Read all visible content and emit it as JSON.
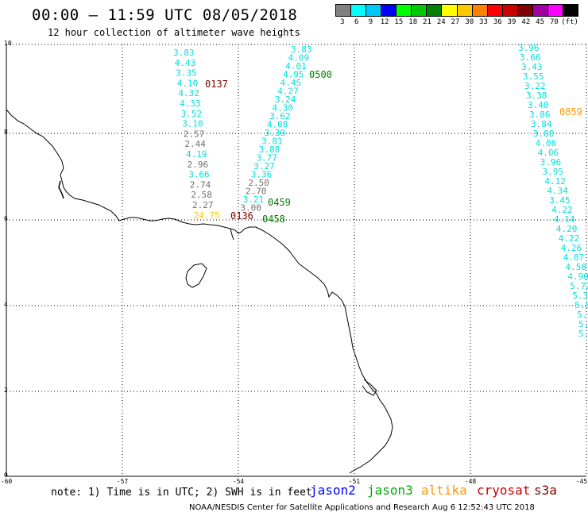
{
  "header": {
    "title": "00:00 — 11:59 UTC 08/05/2018",
    "subtitle": "12 hour collection of altimeter wave heights"
  },
  "scale": {
    "labels": [
      "3",
      "6",
      "9",
      "12",
      "15",
      "18",
      "21",
      "24",
      "27",
      "30",
      "33",
      "36",
      "39",
      "42",
      "45",
      "70",
      "(ft)"
    ],
    "colors": [
      "#808080",
      "#00ffff",
      "#00c8ff",
      "#0000ff",
      "#00ff00",
      "#00c800",
      "#008000",
      "#ffff00",
      "#ffc800",
      "#ff8000",
      "#ff0000",
      "#c80000",
      "#800000",
      "#a000a0",
      "#ff00ff",
      "#000000"
    ]
  },
  "axes": {
    "x_ticks": [
      "-60",
      "-57",
      "-54",
      "-51",
      "-48",
      "-45"
    ],
    "y_ticks": [
      "10",
      "8",
      "6",
      "4",
      "2",
      "0"
    ]
  },
  "passes": [
    {
      "name": "track-left",
      "color": "#00e0e0",
      "values": [
        {
          "v": "3.83",
          "c": "#00e0e0"
        },
        {
          "v": "4.43",
          "c": "#00e0e0"
        },
        {
          "v": "3.35",
          "c": "#00e0e0"
        },
        {
          "v": "4.10",
          "c": "#00e0e0"
        },
        {
          "v": "4.32",
          "c": "#00e0e0"
        },
        {
          "v": "4.33",
          "c": "#00e0e0"
        },
        {
          "v": "3.52",
          "c": "#00e0e0"
        },
        {
          "v": "3.10",
          "c": "#00e0e0"
        },
        {
          "v": "2.57",
          "c": "#707070"
        },
        {
          "v": "2.44",
          "c": "#707070"
        },
        {
          "v": "4.19",
          "c": "#00e0e0"
        },
        {
          "v": "2.96",
          "c": "#707070"
        },
        {
          "v": "3.66",
          "c": "#00e0e0"
        },
        {
          "v": "2.74",
          "c": "#707070"
        },
        {
          "v": "2.58",
          "c": "#707070"
        },
        {
          "v": "2.27",
          "c": "#707070"
        },
        {
          "v": "24.75",
          "c": "#ffc800"
        }
      ]
    },
    {
      "name": "track-middle",
      "color": "#00e0e0",
      "values": [
        {
          "v": "3.83",
          "c": "#00e0e0"
        },
        {
          "v": "4.09",
          "c": "#00e0e0"
        },
        {
          "v": "4.01",
          "c": "#00e0e0"
        },
        {
          "v": "4.95",
          "c": "#00e0e0"
        },
        {
          "v": "4.45",
          "c": "#00e0e0"
        },
        {
          "v": "4.27",
          "c": "#00e0e0"
        },
        {
          "v": "3.24",
          "c": "#00e0e0"
        },
        {
          "v": "4.30",
          "c": "#00e0e0"
        },
        {
          "v": "3.62",
          "c": "#00e0e0"
        },
        {
          "v": "4.08",
          "c": "#00e0e0"
        },
        {
          "v": "3.30",
          "c": "#00e0e0"
        },
        {
          "v": "3.81",
          "c": "#00e0e0"
        },
        {
          "v": "3.88",
          "c": "#00e0e0"
        },
        {
          "v": "3.77",
          "c": "#00e0e0"
        },
        {
          "v": "3.27",
          "c": "#00e0e0"
        },
        {
          "v": "3.36",
          "c": "#00e0e0"
        },
        {
          "v": "2.50",
          "c": "#707070"
        },
        {
          "v": "2.70",
          "c": "#707070"
        },
        {
          "v": "3.21",
          "c": "#00e0e0"
        },
        {
          "v": "3.00",
          "c": "#707070"
        }
      ]
    },
    {
      "name": "track-right",
      "color": "#00e0e0",
      "values": [
        {
          "v": "3.96",
          "c": "#00e0e0"
        },
        {
          "v": "3.66",
          "c": "#00e0e0"
        },
        {
          "v": "3.43",
          "c": "#00e0e0"
        },
        {
          "v": "3.55",
          "c": "#00e0e0"
        },
        {
          "v": "3.22",
          "c": "#00e0e0"
        },
        {
          "v": "3.38",
          "c": "#00e0e0"
        },
        {
          "v": "3.40",
          "c": "#00e0e0"
        },
        {
          "v": "3.86",
          "c": "#00e0e0"
        },
        {
          "v": "3.84",
          "c": "#00e0e0"
        },
        {
          "v": "3.80",
          "c": "#00e0e0"
        },
        {
          "v": "4.06",
          "c": "#00e0e0"
        },
        {
          "v": "4.06",
          "c": "#00e0e0"
        },
        {
          "v": "3.96",
          "c": "#00e0e0"
        },
        {
          "v": "3.95",
          "c": "#00e0e0"
        },
        {
          "v": "4.12",
          "c": "#00e0e0"
        },
        {
          "v": "4.34",
          "c": "#00e0e0"
        },
        {
          "v": "3.45",
          "c": "#00e0e0"
        },
        {
          "v": "4.22",
          "c": "#00e0e0"
        },
        {
          "v": "4.14",
          "c": "#00e0e0"
        },
        {
          "v": "4.20",
          "c": "#00e0e0"
        },
        {
          "v": "4.22",
          "c": "#00e0e0"
        },
        {
          "v": "4.26",
          "c": "#00e0e0"
        },
        {
          "v": "4.07",
          "c": "#00e0e0"
        },
        {
          "v": "4.58",
          "c": "#00e0e0"
        },
        {
          "v": "4.90",
          "c": "#00e0e0"
        },
        {
          "v": "5.72",
          "c": "#00e0e0"
        },
        {
          "v": "5.34",
          "c": "#00e0e0"
        },
        {
          "v": "5.8",
          "c": "#00e0e0"
        },
        {
          "v": "5.",
          "c": "#00e0e0"
        },
        {
          "v": "5.",
          "c": "#00e0e0"
        },
        {
          "v": "5.",
          "c": "#00e0e0"
        }
      ]
    }
  ],
  "time_labels": [
    {
      "text": "0137",
      "color": "#800000"
    },
    {
      "text": "0500",
      "color": "#008000"
    },
    {
      "text": "0859",
      "color": "#ff9900"
    },
    {
      "text": "0459",
      "color": "#008000"
    },
    {
      "text": "0458",
      "color": "#008000"
    },
    {
      "text": "0136",
      "color": "#800000"
    }
  ],
  "footer": {
    "note": "note: 1) Time is in UTC; 2) SWH is in feet",
    "legend": [
      {
        "label": "jason2",
        "color": "#0000ff"
      },
      {
        "label": "jason3",
        "color": "#00aa00"
      },
      {
        "label": "altika",
        "color": "#ff9900"
      },
      {
        "label": "cryosat",
        "color": "#cc0000"
      },
      {
        "label": "s3a",
        "color": "#800000"
      }
    ],
    "credit": "NOAA/NESDIS Center for Satellite Applications and Research   Aug  6 12:52:43 UTC 2018"
  }
}
